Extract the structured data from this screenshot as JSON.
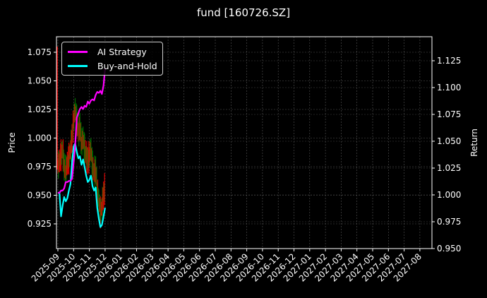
{
  "title": "fund [160726.SZ]",
  "colors": {
    "background": "#000000",
    "ai_strategy": "#ff00ff",
    "buy_and_hold": "#00ffff",
    "price_up": "#008000",
    "price_down": "#ff0000",
    "grid": "#555555",
    "axis": "#ffffff"
  },
  "legend": {
    "items": [
      {
        "label": "AI Strategy",
        "color": "#ff00ff"
      },
      {
        "label": "Buy-and-Hold",
        "color": "#00ffff"
      }
    ]
  },
  "chart_data": {
    "type": "line",
    "title": "fund [160726.SZ]",
    "xlabel": "",
    "ylabel": "Price",
    "y2label": "Return",
    "x_ticks": [
      "2025-09",
      "2025-10",
      "2025-11",
      "2025-12",
      "2026-01",
      "2026-02",
      "2026-03",
      "2026-04",
      "2026-05",
      "2026-06",
      "2026-07",
      "2026-08",
      "2026-09",
      "2026-10",
      "2026-11",
      "2026-12",
      "2027-01",
      "2027-02",
      "2027-03",
      "2027-04",
      "2027-05",
      "2027-06",
      "2027-07",
      "2027-08"
    ],
    "y_ticks": [
      "0.925",
      "0.950",
      "0.975",
      "1.000",
      "1.025",
      "1.050",
      "1.075"
    ],
    "y2_ticks": [
      "0.950",
      "0.975",
      "1.000",
      "1.025",
      "1.050",
      "1.075",
      "1.100",
      "1.125"
    ],
    "ylim": [
      0.905,
      1.088
    ],
    "y2lim": [
      0.95,
      1.146
    ],
    "grid": true,
    "legend_position": "upper left",
    "series": [
      {
        "name": "AI Strategy",
        "axis": "right",
        "x": [
          0,
          0.1,
          0.2,
          0.3,
          0.4,
          0.5,
          0.6,
          0.7,
          0.8,
          0.9,
          1.0,
          1.1,
          1.2,
          1.3,
          1.4,
          1.5,
          1.6,
          1.7,
          1.8,
          1.9,
          2.0,
          2.1,
          2.2,
          2.3,
          2.4,
          2.5,
          2.6,
          2.7,
          2.8,
          2.9,
          3.0
        ],
        "values": [
          1.002,
          1.002,
          1.004,
          1.004,
          1.006,
          1.012,
          1.012,
          1.013,
          1.013,
          1.015,
          1.03,
          1.046,
          1.072,
          1.076,
          1.08,
          1.082,
          1.08,
          1.083,
          1.082,
          1.087,
          1.085,
          1.088,
          1.089,
          1.088,
          1.093,
          1.096,
          1.095,
          1.097,
          1.094,
          1.102,
          1.118
        ]
      },
      {
        "name": "Buy-and-Hold",
        "axis": "right",
        "x": [
          0,
          0.1,
          0.2,
          0.3,
          0.4,
          0.5,
          0.6,
          0.7,
          0.8,
          0.9,
          1.0,
          1.1,
          1.2,
          1.3,
          1.4,
          1.5,
          1.6,
          1.7,
          1.8,
          1.9,
          2.0,
          2.1,
          2.2,
          2.3,
          2.4,
          2.5,
          2.6,
          2.7,
          2.8,
          2.9,
          3.0
        ],
        "values": [
          1.002,
          1.002,
          0.98,
          0.99,
          0.998,
          0.994,
          0.997,
          1.004,
          1.01,
          1.03,
          1.045,
          1.048,
          1.04,
          1.034,
          1.036,
          1.028,
          1.033,
          1.026,
          1.018,
          1.012,
          1.014,
          1.018,
          1.008,
          1.004,
          1.007,
          0.988,
          0.978,
          0.97,
          0.972,
          0.98,
          0.988
        ]
      },
      {
        "name": "Price (daily bars)",
        "axis": "left",
        "x": [
          0,
          0.1,
          0.2,
          0.3,
          0.4,
          0.5,
          0.6,
          0.7,
          0.8,
          0.9,
          1.0,
          1.1,
          1.2,
          1.3,
          1.4,
          1.5,
          1.6,
          1.7,
          1.8,
          1.9,
          2.0,
          2.1,
          2.2,
          2.3,
          2.4,
          2.5,
          2.6,
          2.7,
          2.8,
          2.9,
          3.0
        ],
        "values": [
          0.975,
          0.98,
          0.985,
          0.99,
          0.975,
          0.97,
          0.978,
          0.982,
          0.99,
          1.0,
          1.015,
          1.025,
          1.015,
          1.005,
          1.01,
          0.995,
          1.0,
          0.99,
          0.985,
          0.98,
          0.985,
          0.99,
          0.975,
          0.97,
          0.972,
          0.955,
          0.945,
          0.935,
          0.94,
          0.95,
          0.958
        ]
      }
    ]
  }
}
